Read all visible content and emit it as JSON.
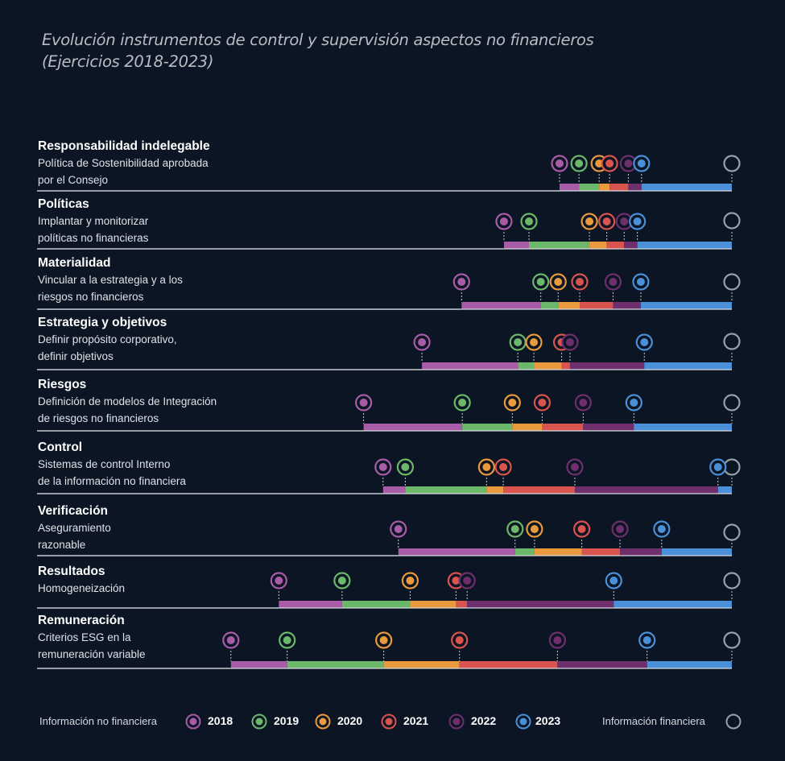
{
  "title_line1": "Evolución instrumentos de control y supervisión aspectos no financieros",
  "title_line2": "(Ejercicios 2018-2023)",
  "colors": {
    "background": "#0b1524",
    "2018": "#a85ca8",
    "2019": "#6cb86a",
    "2020": "#e89a3c",
    "2021": "#d9534f",
    "2022": "#6e2f6c",
    "2023": "#4a90d9",
    "financial": "#9aa0a6",
    "baseline": "#c9ccd1"
  },
  "legend": {
    "nonfinancial_label": "Información no financiera",
    "financial_label": "Información financiera",
    "years": [
      "2018",
      "2019",
      "2020",
      "2021",
      "2022",
      "2023"
    ]
  },
  "chart_data": {
    "type": "timeline-markers",
    "title": "Evolución instrumentos de control y supervisión aspectos no financieros (Ejercicios 2018-2023)",
    "note": "Marker positions given as fraction of the axis where 1.0 = Información financiera reference",
    "series_names": [
      "2018",
      "2019",
      "2020",
      "2021",
      "2022",
      "2023"
    ],
    "rows": [
      {
        "heading": "Responsabilidad indelegable",
        "lines": [
          "Política de Sostenibilidad aprobada",
          "por el Consejo"
        ],
        "values": [
          0.752,
          0.78,
          0.809,
          0.824,
          0.851,
          0.87
        ],
        "financial": 1.0
      },
      {
        "heading": "Políticas",
        "lines": [
          "Implantar y monitorizar",
          "políticas no financieras"
        ],
        "values": [
          0.672,
          0.708,
          0.795,
          0.82,
          0.845,
          0.864
        ],
        "financial": 1.0
      },
      {
        "heading": "Materialidad",
        "lines": [
          "Vincular a la estrategia y a los",
          "riesgos no financieros"
        ],
        "values": [
          0.611,
          0.725,
          0.75,
          0.781,
          0.829,
          0.869
        ],
        "financial": 1.0
      },
      {
        "heading": "Estrategia y objetivos",
        "lines": [
          "Definir propósito corporativo,",
          "definir objetivos"
        ],
        "values": [
          0.554,
          0.692,
          0.715,
          0.755,
          0.767,
          0.874
        ],
        "financial": 1.0
      },
      {
        "heading": "Riesgos",
        "lines": [
          "Definición de modelos de Integración",
          "de riesgos no financieros"
        ],
        "values": [
          0.47,
          0.612,
          0.684,
          0.727,
          0.786,
          0.859
        ],
        "financial": 1.0
      },
      {
        "heading": "Control",
        "lines": [
          "Sistemas de control Interno",
          "de la información no financiera"
        ],
        "values": [
          0.498,
          0.53,
          0.647,
          0.671,
          0.774,
          0.98
        ],
        "financial": 1.0
      },
      {
        "heading": "Verificación",
        "lines": [
          "Aseguramiento",
          "razonable"
        ],
        "values": [
          0.52,
          0.688,
          0.716,
          0.784,
          0.839,
          0.899
        ],
        "financial": 1.0
      },
      {
        "heading": "Resultados",
        "lines": [
          "Homogeneización"
        ],
        "values": [
          0.348,
          0.439,
          0.537,
          0.603,
          0.619,
          0.83
        ],
        "financial": 1.0
      },
      {
        "heading": "Remuneración",
        "lines": [
          "Criterios ESG en la",
          "remuneración variable"
        ],
        "values": [
          0.279,
          0.36,
          0.499,
          0.608,
          0.749,
          0.878
        ],
        "financial": 1.0
      }
    ]
  }
}
